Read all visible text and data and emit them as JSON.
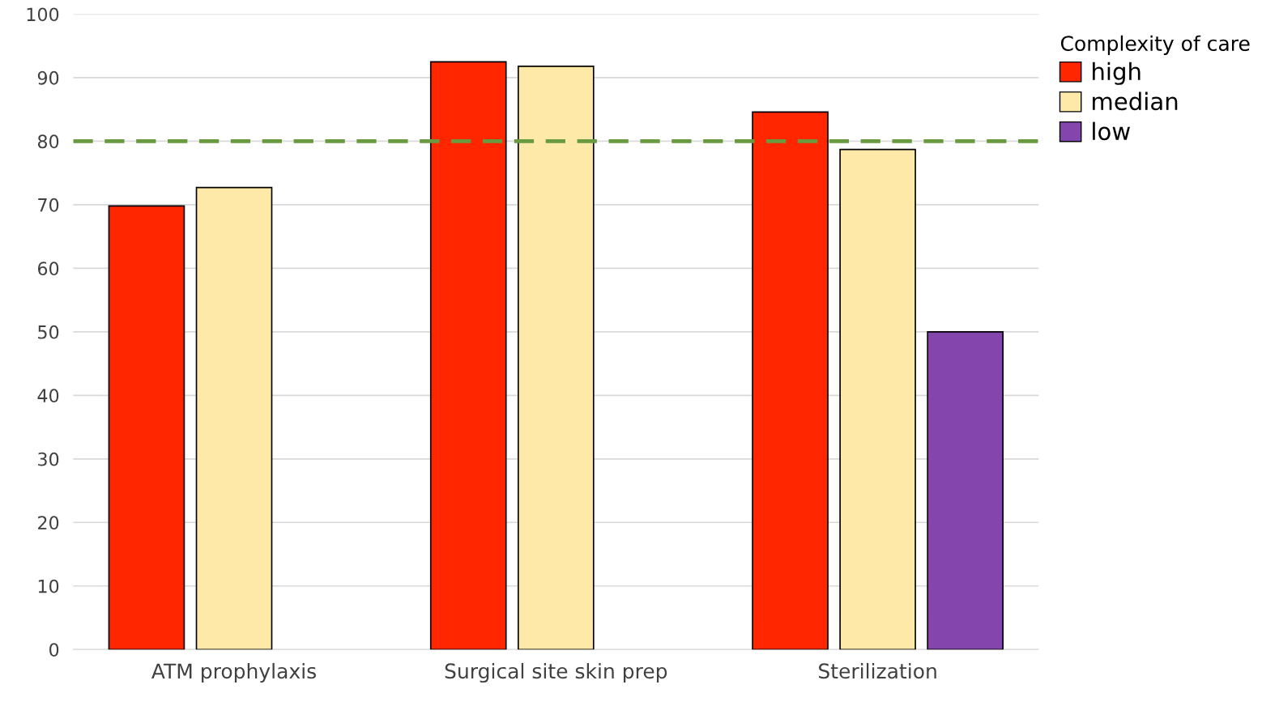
{
  "chart_data": {
    "type": "bar",
    "categories": [
      "ATM prophylaxis",
      "Surgical site skin prep",
      "Sterilization"
    ],
    "series": [
      {
        "name": "high",
        "color": "#ff2600",
        "values": [
          69.8,
          92.5,
          84.6
        ]
      },
      {
        "name": "median",
        "color": "#ffe9a8",
        "values": [
          72.7,
          91.8,
          78.7
        ]
      },
      {
        "name": "low",
        "color": "#8446ad",
        "values": [
          null,
          null,
          50
        ]
      }
    ],
    "legend_title": "Complexity of care",
    "legend": "top right",
    "ylim": [
      0,
      100
    ],
    "yticks": [
      0,
      10,
      20,
      30,
      40,
      50,
      60,
      70,
      80,
      90,
      100
    ],
    "grid": "y",
    "ref_lines": [
      {
        "axis": "y",
        "value": 80,
        "color": "#6a9a3f",
        "line_style": "dashed"
      }
    ]
  }
}
